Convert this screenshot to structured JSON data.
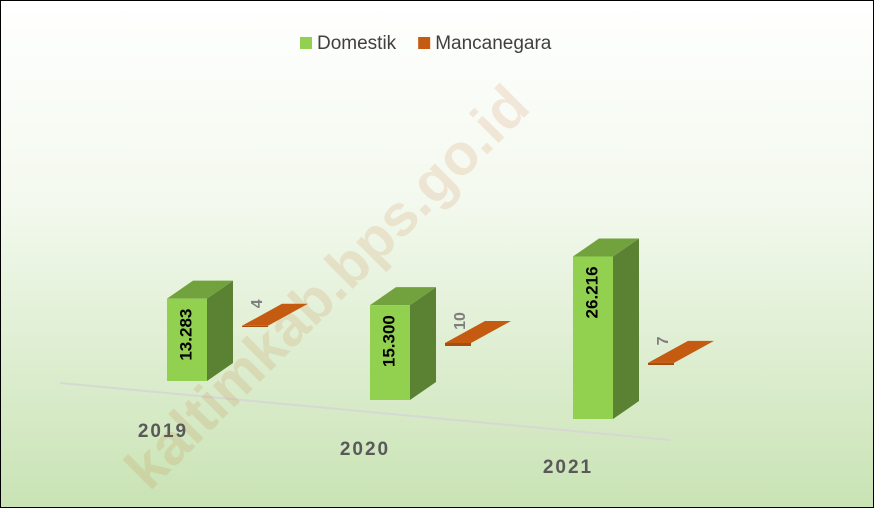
{
  "chart_data": {
    "type": "bar3d",
    "categories": [
      "2019",
      "2020",
      "2021"
    ],
    "series": [
      {
        "name": "Domestik",
        "color": "#92d050",
        "values": [
          13283,
          15300,
          26216
        ],
        "value_labels": [
          "13.283",
          "15.300",
          "26.216"
        ]
      },
      {
        "name": "Mancanegara",
        "color": "#c55a11",
        "values": [
          4,
          10,
          7
        ]
      }
    ],
    "legend": "top",
    "watermark": "kaltimkab.bps.go.id"
  }
}
